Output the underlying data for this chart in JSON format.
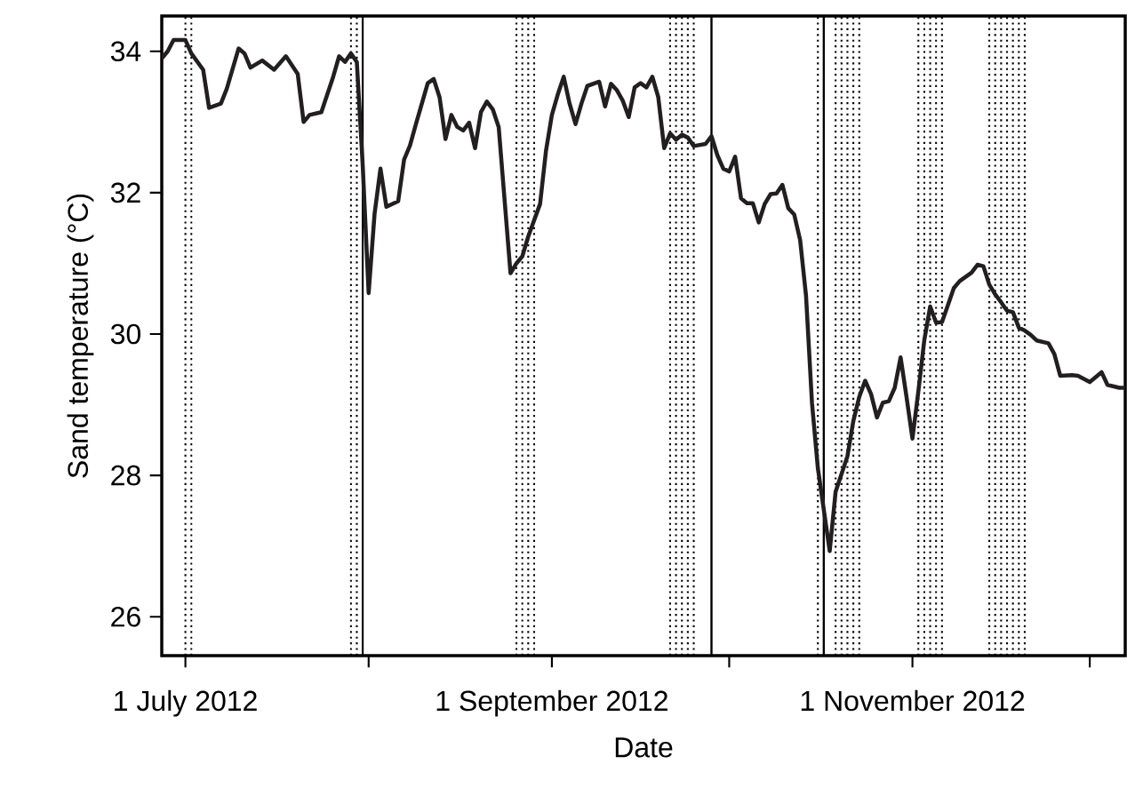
{
  "chart_data": {
    "type": "line",
    "xlabel": "Date",
    "ylabel": "Sand temperature (°C)",
    "x": [
      "2012-06-27",
      "2012-06-28",
      "2012-06-29",
      "2012-07-01",
      "2012-07-02",
      "2012-07-04",
      "2012-07-05",
      "2012-07-07",
      "2012-07-08",
      "2012-07-10",
      "2012-07-11",
      "2012-07-12",
      "2012-07-14",
      "2012-07-16",
      "2012-07-18",
      "2012-07-20",
      "2012-07-21",
      "2012-07-22",
      "2012-07-24",
      "2012-07-26",
      "2012-07-27",
      "2012-07-28",
      "2012-07-29",
      "2012-07-30",
      "2012-07-31",
      "2012-08-01",
      "2012-08-02",
      "2012-08-03",
      "2012-08-04",
      "2012-08-06",
      "2012-08-07",
      "2012-08-08",
      "2012-08-09",
      "2012-08-11",
      "2012-08-12",
      "2012-08-13",
      "2012-08-14",
      "2012-08-15",
      "2012-08-16",
      "2012-08-17",
      "2012-08-18",
      "2012-08-19",
      "2012-08-20",
      "2012-08-21",
      "2012-08-22",
      "2012-08-23",
      "2012-08-25",
      "2012-08-26",
      "2012-08-27",
      "2012-08-28",
      "2012-08-30",
      "2012-08-31",
      "2012-09-01",
      "2012-09-02",
      "2012-09-03",
      "2012-09-04",
      "2012-09-05",
      "2012-09-06",
      "2012-09-07",
      "2012-09-09",
      "2012-09-10",
      "2012-09-11",
      "2012-09-12",
      "2012-09-13",
      "2012-09-14",
      "2012-09-15",
      "2012-09-16",
      "2012-09-17",
      "2012-09-18",
      "2012-09-19",
      "2012-09-20",
      "2012-09-21",
      "2012-09-22",
      "2012-09-23",
      "2012-09-24",
      "2012-09-25",
      "2012-09-27",
      "2012-09-28",
      "2012-09-29",
      "2012-09-30",
      "2012-10-01",
      "2012-10-02",
      "2012-10-03",
      "2012-10-04",
      "2012-10-05",
      "2012-10-06",
      "2012-10-07",
      "2012-10-08",
      "2012-10-09",
      "2012-10-10",
      "2012-10-11",
      "2012-10-12",
      "2012-10-13",
      "2012-10-14",
      "2012-10-15",
      "2012-10-16",
      "2012-10-18",
      "2012-10-19",
      "2012-10-21",
      "2012-10-22",
      "2012-10-23",
      "2012-10-24",
      "2012-10-25",
      "2012-10-26",
      "2012-10-27",
      "2012-10-28",
      "2012-10-29",
      "2012-10-30",
      "2012-10-31",
      "2012-11-01",
      "2012-11-02",
      "2012-11-03",
      "2012-11-04",
      "2012-11-05",
      "2012-11-06",
      "2012-11-07",
      "2012-11-08",
      "2012-11-09",
      "2012-11-11",
      "2012-11-12",
      "2012-11-13",
      "2012-11-14",
      "2012-11-15",
      "2012-11-16",
      "2012-11-17",
      "2012-11-18",
      "2012-11-19",
      "2012-11-20",
      "2012-11-21",
      "2012-11-22",
      "2012-11-24",
      "2012-11-25",
      "2012-11-26",
      "2012-11-28",
      "2012-11-29",
      "2012-12-01",
      "2012-12-03",
      "2012-12-04",
      "2012-12-06",
      "2012-12-07"
    ],
    "series": [
      {
        "color": "#231f20",
        "values": [
          33.9,
          34.0,
          34.16,
          34.16,
          33.97,
          33.74,
          33.2,
          33.26,
          33.47,
          34.04,
          33.97,
          33.77,
          33.87,
          33.74,
          33.93,
          33.68,
          33.0,
          33.1,
          33.14,
          33.64,
          33.93,
          33.85,
          33.97,
          33.85,
          32.38,
          30.58,
          31.7,
          32.34,
          31.8,
          31.88,
          32.47,
          32.67,
          32.97,
          33.55,
          33.61,
          33.35,
          32.76,
          33.1,
          32.93,
          32.88,
          32.99,
          32.63,
          33.14,
          33.29,
          33.18,
          32.93,
          30.86,
          31.0,
          31.1,
          31.38,
          31.84,
          32.59,
          33.1,
          33.39,
          33.64,
          33.26,
          32.97,
          33.26,
          33.51,
          33.57,
          33.22,
          33.54,
          33.45,
          33.3,
          33.07,
          33.49,
          33.55,
          33.49,
          33.64,
          33.35,
          32.63,
          32.84,
          32.75,
          32.82,
          32.78,
          32.66,
          32.69,
          32.8,
          32.53,
          32.34,
          32.3,
          32.51,
          31.92,
          31.85,
          31.85,
          31.58,
          31.84,
          31.98,
          31.99,
          32.11,
          31.78,
          31.69,
          31.33,
          30.54,
          29.03,
          28.1,
          26.93,
          27.77,
          28.27,
          28.77,
          29.11,
          29.34,
          29.15,
          28.82,
          29.03,
          29.05,
          29.24,
          29.67,
          29.11,
          28.52,
          29.19,
          29.91,
          30.39,
          30.16,
          30.17,
          30.41,
          30.65,
          30.75,
          30.87,
          30.98,
          30.96,
          30.7,
          30.56,
          30.45,
          30.33,
          30.31,
          30.09,
          30.05,
          29.99,
          29.91,
          29.87,
          29.72,
          29.41,
          29.42,
          29.41,
          29.32,
          29.46,
          29.28,
          29.24,
          29.24
        ]
      }
    ],
    "xlim": [
      "2012-06-27",
      "2012-12-07"
    ],
    "ylim": [
      25.45,
      34.5
    ],
    "xticks": [
      {
        "value": "2012-07-01",
        "label": "1 July 2012"
      },
      {
        "value": "2012-08-01",
        "label": null
      },
      {
        "value": "2012-09-01",
        "label": "1 September 2012"
      },
      {
        "value": "2012-10-01",
        "label": null
      },
      {
        "value": "2012-11-01",
        "label": "1 November 2012"
      },
      {
        "value": "2012-12-01",
        "label": null
      }
    ],
    "yticks": [
      26,
      28,
      30,
      32,
      34
    ],
    "grid": false,
    "marker": "none",
    "line_style": "solid",
    "ref_lines": [
      {
        "axis": "x",
        "value": "2012-07-31",
        "line_style": "solid"
      },
      {
        "axis": "x",
        "value": "2012-09-28",
        "line_style": "solid"
      },
      {
        "axis": "x",
        "value": "2012-10-17",
        "line_style": "solid"
      },
      {
        "axis": "x",
        "value": "2012-07-01",
        "line_style": "dotted"
      },
      {
        "axis": "x",
        "value": "2012-07-02",
        "line_style": "dotted"
      },
      {
        "axis": "x",
        "value": "2012-07-29",
        "line_style": "dotted"
      },
      {
        "axis": "x",
        "value": "2012-07-30",
        "line_style": "dotted"
      },
      {
        "axis": "x",
        "value": "2012-08-26",
        "line_style": "dotted"
      },
      {
        "axis": "x",
        "value": "2012-08-27",
        "line_style": "dotted"
      },
      {
        "axis": "x",
        "value": "2012-08-28",
        "line_style": "dotted"
      },
      {
        "axis": "x",
        "value": "2012-08-29",
        "line_style": "dotted"
      },
      {
        "axis": "x",
        "value": "2012-09-21",
        "line_style": "dotted"
      },
      {
        "axis": "x",
        "value": "2012-09-22",
        "line_style": "dotted"
      },
      {
        "axis": "x",
        "value": "2012-09-23",
        "line_style": "dotted"
      },
      {
        "axis": "x",
        "value": "2012-09-24",
        "line_style": "dotted"
      },
      {
        "axis": "x",
        "value": "2012-09-25",
        "line_style": "dotted"
      },
      {
        "axis": "x",
        "value": "2012-10-16",
        "line_style": "dotted"
      },
      {
        "axis": "x",
        "value": "2012-10-19",
        "line_style": "dotted"
      },
      {
        "axis": "x",
        "value": "2012-10-20",
        "line_style": "dotted"
      },
      {
        "axis": "x",
        "value": "2012-10-21",
        "line_style": "dotted"
      },
      {
        "axis": "x",
        "value": "2012-10-22",
        "line_style": "dotted"
      },
      {
        "axis": "x",
        "value": "2012-10-23",
        "line_style": "dotted"
      },
      {
        "axis": "x",
        "value": "2012-11-02",
        "line_style": "dotted"
      },
      {
        "axis": "x",
        "value": "2012-11-03",
        "line_style": "dotted"
      },
      {
        "axis": "x",
        "value": "2012-11-04",
        "line_style": "dotted"
      },
      {
        "axis": "x",
        "value": "2012-11-05",
        "line_style": "dotted"
      },
      {
        "axis": "x",
        "value": "2012-11-06",
        "line_style": "dotted"
      },
      {
        "axis": "x",
        "value": "2012-11-14",
        "line_style": "dotted"
      },
      {
        "axis": "x",
        "value": "2012-11-15",
        "line_style": "dotted"
      },
      {
        "axis": "x",
        "value": "2012-11-16",
        "line_style": "dotted"
      },
      {
        "axis": "x",
        "value": "2012-11-17",
        "line_style": "dotted"
      },
      {
        "axis": "x",
        "value": "2012-11-18",
        "line_style": "dotted"
      },
      {
        "axis": "x",
        "value": "2012-11-19",
        "line_style": "dotted"
      },
      {
        "axis": "x",
        "value": "2012-11-20",
        "line_style": "dotted"
      }
    ]
  }
}
